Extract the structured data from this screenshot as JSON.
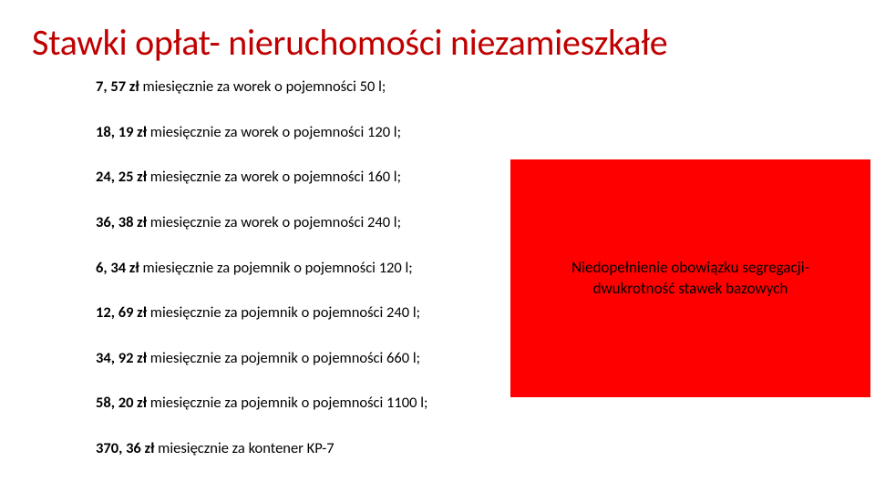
{
  "title": {
    "text": "Stawki opłat- nieruchomości niezamieszkałe",
    "color": "#c00000",
    "fontsize": 40
  },
  "rates": [
    {
      "bold": "7, 57 zł",
      "rest": " miesięcznie za worek o pojemności 50 l;"
    },
    {
      "bold": "18, 19 zł",
      "rest": " miesięcznie za worek o pojemności 120 l;"
    },
    {
      "bold": "24, 25 zł",
      "rest": " miesięcznie za worek o pojemności 160 l;"
    },
    {
      "bold": "36, 38 zł",
      "rest": " miesięcznie za worek o pojemności 240 l;"
    },
    {
      "bold": "6, 34 zł",
      "rest": " miesięcznie za pojemnik o pojemności 120 l;"
    },
    {
      "bold": "12, 69 zł",
      "rest": " miesięcznie za pojemnik o pojemności 240 l;"
    },
    {
      "bold": "34, 92 zł",
      "rest": " miesięcznie za pojemnik o pojemności 660 l;"
    },
    {
      "bold": "58, 20 zł",
      "rest": " miesięcznie za pojemnik o pojemności 1100 l;"
    },
    {
      "bold": "370, 36 zł",
      "rest": " miesięcznie za kontener KP-7"
    }
  ],
  "callout": {
    "line1": "Niedopełnienie obowiązku segregacji-",
    "line2": "dwukrotność stawek bazowych",
    "background": "#ff0000",
    "text_color": "#000000"
  },
  "colors": {
    "page_background": "#ffffff",
    "title_color": "#c00000",
    "body_text": "#000000"
  }
}
